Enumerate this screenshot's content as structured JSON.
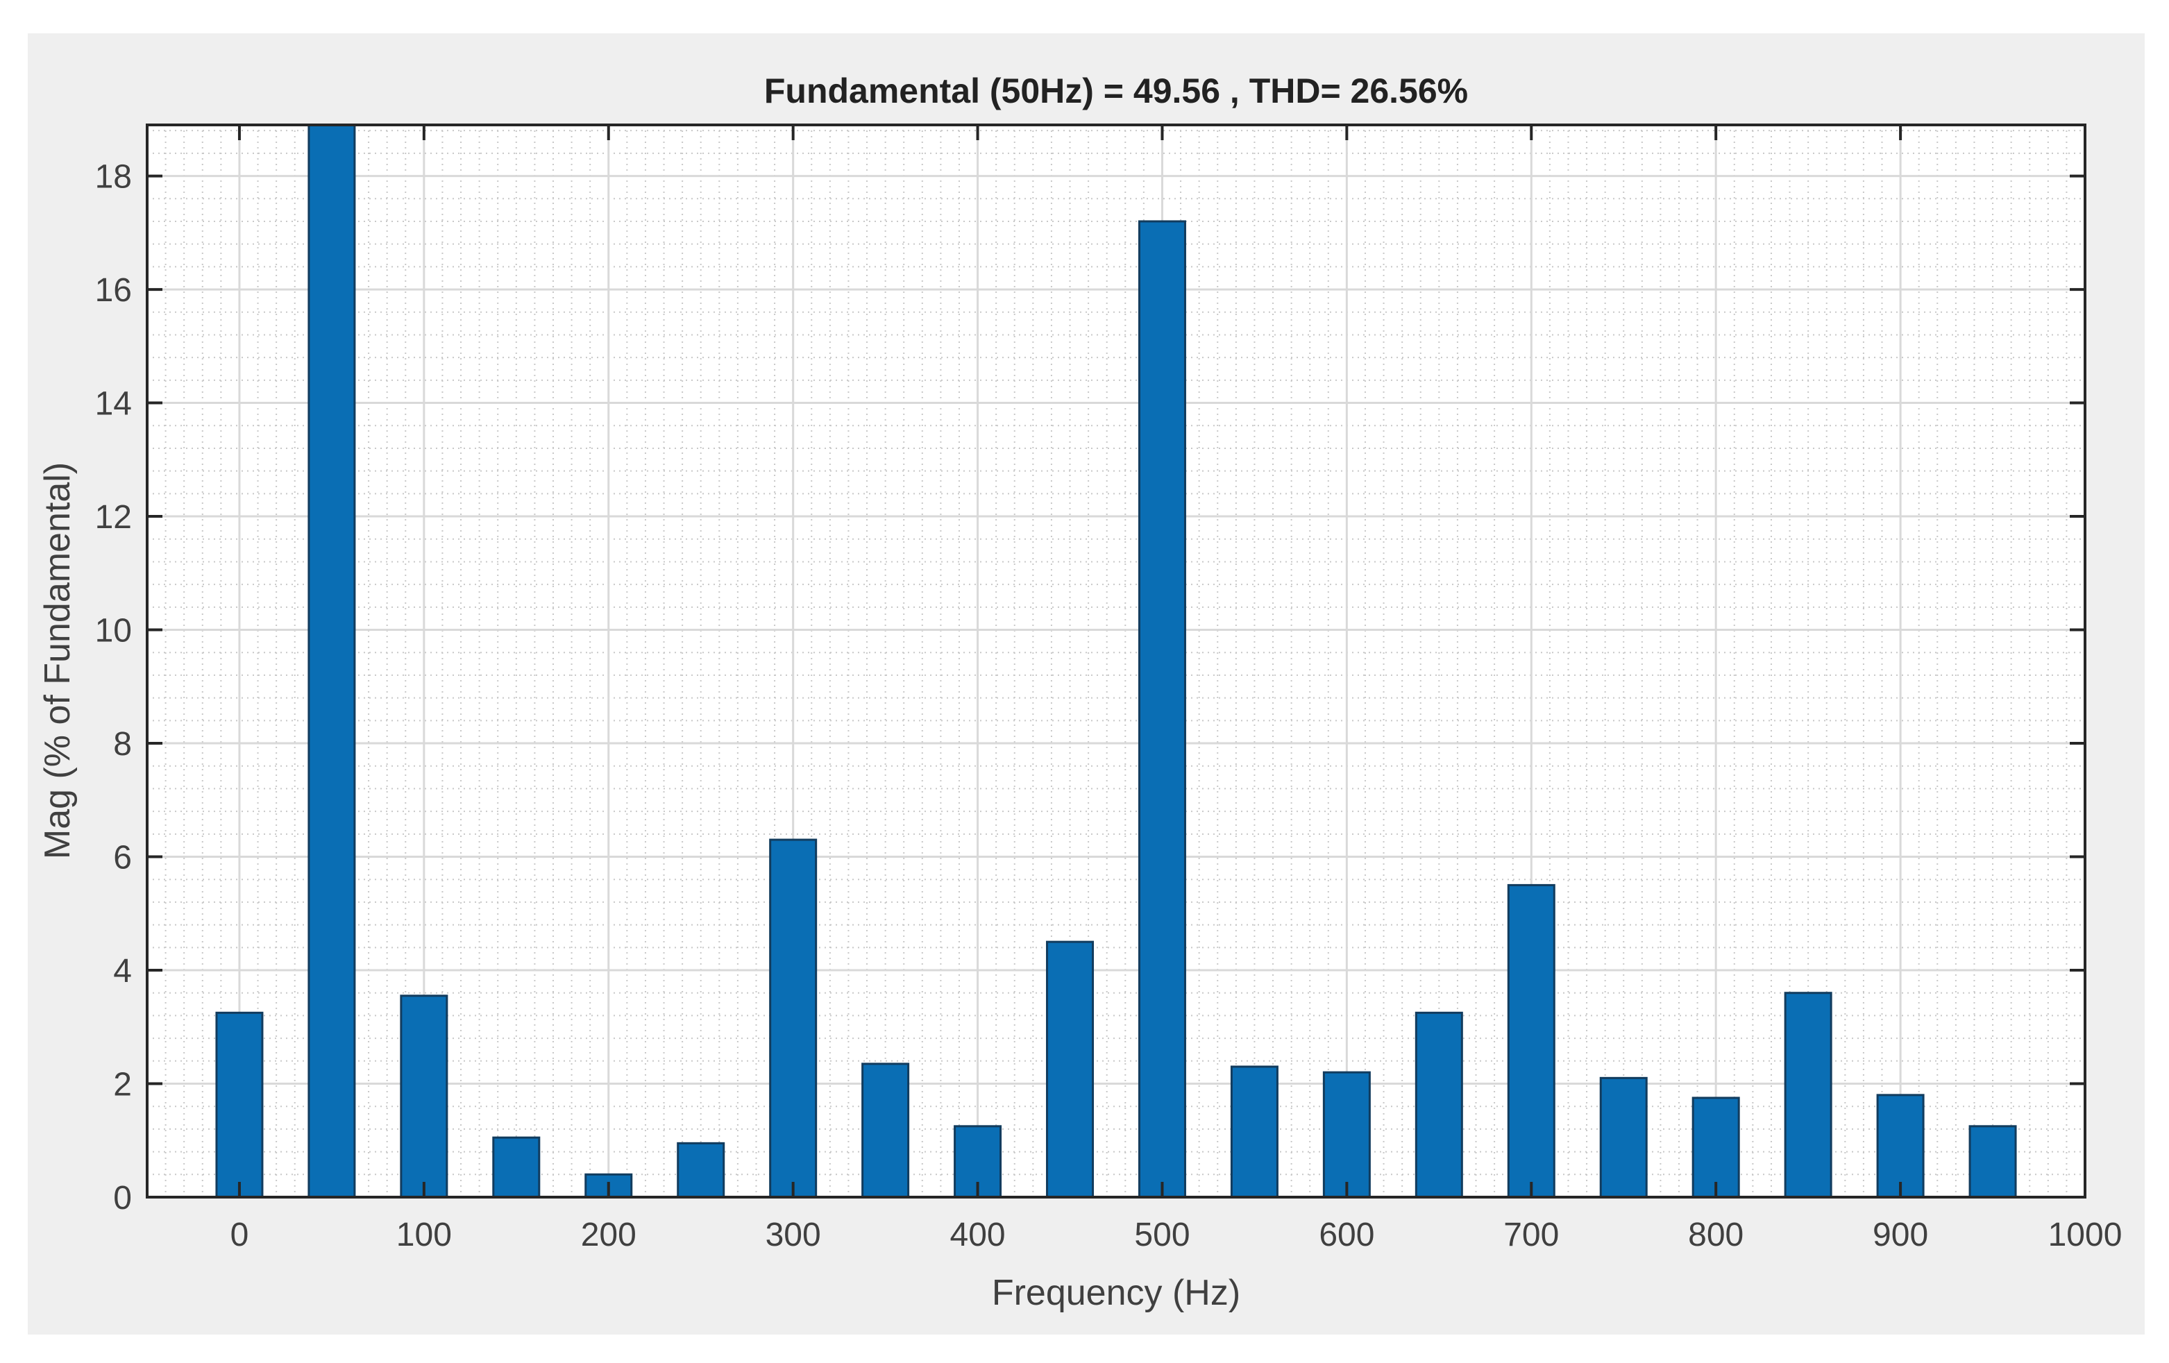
{
  "chart_data": {
    "type": "bar",
    "title": "Fundamental (50Hz) = 49.56 , THD= 26.56%",
    "xlabel": "Frequency (Hz)",
    "ylabel": "Mag (% of Fundamental)",
    "xlim": [
      -50,
      1000
    ],
    "ylim": [
      0,
      18.9
    ],
    "x_ticks": [
      0,
      100,
      200,
      300,
      400,
      500,
      600,
      700,
      800,
      900,
      1000
    ],
    "y_ticks": [
      0,
      2,
      4,
      6,
      8,
      10,
      12,
      14,
      16,
      18
    ],
    "grid": true,
    "minor_grid": true,
    "x": [
      0,
      50,
      100,
      150,
      200,
      250,
      300,
      350,
      400,
      450,
      500,
      550,
      600,
      650,
      700,
      750,
      800,
      850,
      900,
      950
    ],
    "values": [
      3.25,
      18.9,
      3.55,
      1.05,
      0.4,
      0.95,
      6.3,
      2.35,
      1.25,
      4.5,
      17.2,
      2.3,
      2.2,
      3.25,
      5.5,
      2.1,
      1.75,
      3.6,
      1.8,
      1.25
    ],
    "bar_color": "#0a6eb4",
    "outer_background": "#efefef",
    "axes_background": "#ffffff"
  }
}
